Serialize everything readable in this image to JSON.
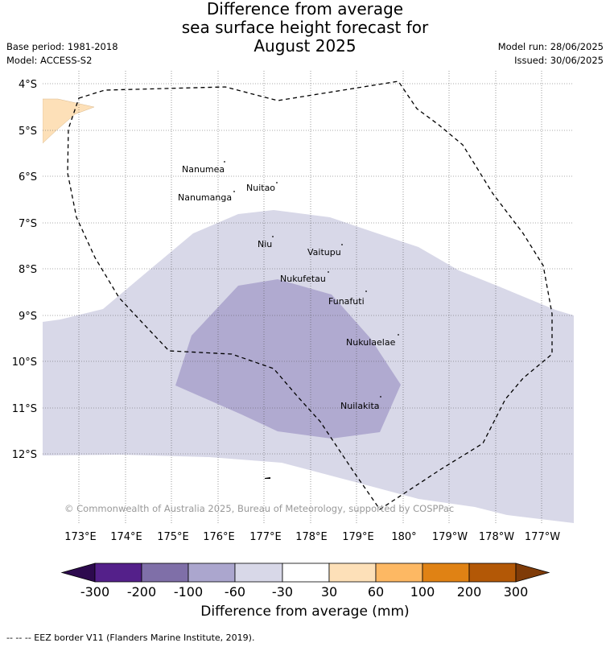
{
  "title": {
    "line1": "Difference from average",
    "line2": "sea surface height forecast for",
    "line3": "August 2025"
  },
  "meta": {
    "base_period": "Base period: 1981-2018",
    "model": "Model: ACCESS-S2",
    "model_run": "Model run: 28/06/2025",
    "issued": "Issued: 30/06/2025"
  },
  "map": {
    "lat_labels": [
      "4°S",
      "5°S",
      "6°S",
      "7°S",
      "8°S",
      "9°S",
      "10°S",
      "11°S",
      "12°S"
    ],
    "lon_labels": [
      "173°E",
      "174°E",
      "175°E",
      "176°E",
      "177°E",
      "178°E",
      "179°E",
      "180°",
      "179°W",
      "178°W",
      "177°W"
    ],
    "places": [
      "Nanumea",
      "Nuitao",
      "Nanumanga",
      "Niu",
      "Vaitupu",
      "Nukufetau",
      "Funafuti",
      "Nukulaelae",
      "Nuilakita"
    ],
    "copyright": "© Commonwealth of Australia 2025, Bureau of Meteorology, supported by COSPPac",
    "colors": {
      "band_-60_-30": "#d8d8e8",
      "band_-100_-60": "#b0aad0",
      "band_30_60": "#fde0b8",
      "eez_line": "#000000"
    }
  },
  "colorbar": {
    "ticks": [
      "-300",
      "-200",
      "-100",
      "-60",
      "-30",
      "30",
      "60",
      "100",
      "200",
      "300"
    ],
    "colors": [
      "#2d0a4e",
      "#54208a",
      "#7f6fa8",
      "#aba6ce",
      "#d8d8e8",
      "#ffffff",
      "#fde0b8",
      "#fdb863",
      "#e08214",
      "#b35806",
      "#7f3b08"
    ],
    "title": "Difference from average (mm)"
  },
  "footnote": "-- -- -- EEZ border V11 (Flanders Marine Institute, 2019)."
}
